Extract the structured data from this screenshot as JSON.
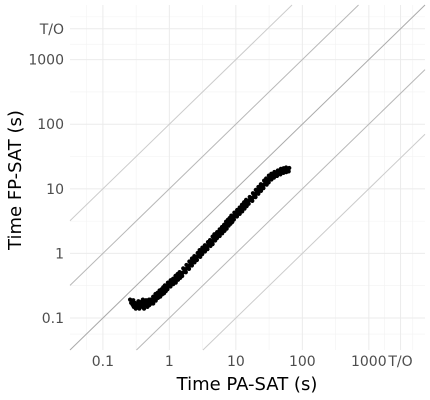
{
  "chart_data": {
    "type": "scatter",
    "xlabel": "Time PA-SAT (s)",
    "ylabel": "Time FP-SAT (s)",
    "x_scale": "log",
    "y_scale": "log",
    "xlim": [
      0.032,
      7000
    ],
    "ylim": [
      0.032,
      7000
    ],
    "x_ticks": [
      {
        "value": 0.1,
        "label": "0.1"
      },
      {
        "value": 1,
        "label": "1"
      },
      {
        "value": 10,
        "label": "10"
      },
      {
        "value": 100,
        "label": "100"
      },
      {
        "value": 1000,
        "label": "1000"
      },
      {
        "value": 3000,
        "label": "T/O"
      }
    ],
    "y_ticks": [
      {
        "value": 0.1,
        "label": "0.1"
      },
      {
        "value": 1,
        "label": "1"
      },
      {
        "value": 10,
        "label": "10"
      },
      {
        "value": 100,
        "label": "100"
      },
      {
        "value": 1000,
        "label": "1000"
      },
      {
        "value": 3000,
        "label": "T/O"
      }
    ],
    "grid": true,
    "reference_lines": [
      {
        "slope_factor": 1,
        "role": "y = x"
      },
      {
        "slope_factor": 10,
        "role": "y = 10x"
      },
      {
        "slope_factor": 0.1,
        "role": "y = x/10"
      },
      {
        "slope_factor": 100,
        "role": "y = 100x"
      },
      {
        "slope_factor": 0.01,
        "role": "y = x/100"
      }
    ],
    "series": [
      {
        "points": [
          [
            0.27,
            0.18
          ],
          [
            0.28,
            0.16
          ],
          [
            0.3,
            0.15
          ],
          [
            0.32,
            0.16
          ],
          [
            0.34,
            0.15
          ],
          [
            0.36,
            0.17
          ],
          [
            0.38,
            0.16
          ],
          [
            0.4,
            0.15
          ],
          [
            0.42,
            0.18
          ],
          [
            0.45,
            0.16
          ],
          [
            0.48,
            0.17
          ],
          [
            0.52,
            0.18
          ],
          [
            0.55,
            0.18
          ],
          [
            0.6,
            0.2
          ],
          [
            0.65,
            0.22
          ],
          [
            0.7,
            0.23
          ],
          [
            0.75,
            0.25
          ],
          [
            0.8,
            0.26
          ],
          [
            0.85,
            0.28
          ],
          [
            0.9,
            0.3
          ],
          [
            1.0,
            0.33
          ],
          [
            1.1,
            0.36
          ],
          [
            1.2,
            0.38
          ],
          [
            1.3,
            0.42
          ],
          [
            1.4,
            0.45
          ],
          [
            1.5,
            0.48
          ],
          [
            1.7,
            0.55
          ],
          [
            1.9,
            0.62
          ],
          [
            2.1,
            0.7
          ],
          [
            2.3,
            0.78
          ],
          [
            2.5,
            0.85
          ],
          [
            2.8,
            0.95
          ],
          [
            3.0,
            1.05
          ],
          [
            3.3,
            1.15
          ],
          [
            3.6,
            1.25
          ],
          [
            4.0,
            1.4
          ],
          [
            4.3,
            1.5
          ],
          [
            4.7,
            1.7
          ],
          [
            5.0,
            1.85
          ],
          [
            5.5,
            2.0
          ],
          [
            6.0,
            2.2
          ],
          [
            6.5,
            2.4
          ],
          [
            7.0,
            2.6
          ],
          [
            7.5,
            2.9
          ],
          [
            8.0,
            3.1
          ],
          [
            8.5,
            3.3
          ],
          [
            9.0,
            3.6
          ],
          [
            10,
            4.0
          ],
          [
            11,
            4.4
          ],
          [
            12,
            4.8
          ],
          [
            13,
            5.3
          ],
          [
            14,
            5.8
          ],
          [
            15,
            6.3
          ],
          [
            17,
            7.0
          ],
          [
            19,
            8.0
          ],
          [
            21,
            9.0
          ],
          [
            23,
            10
          ],
          [
            25,
            11
          ],
          [
            28,
            12.5
          ],
          [
            30,
            13.5
          ],
          [
            33,
            15
          ],
          [
            36,
            16
          ],
          [
            40,
            17
          ],
          [
            45,
            18
          ],
          [
            50,
            19
          ],
          [
            55,
            19.5
          ],
          [
            60,
            20
          ]
        ]
      }
    ]
  }
}
